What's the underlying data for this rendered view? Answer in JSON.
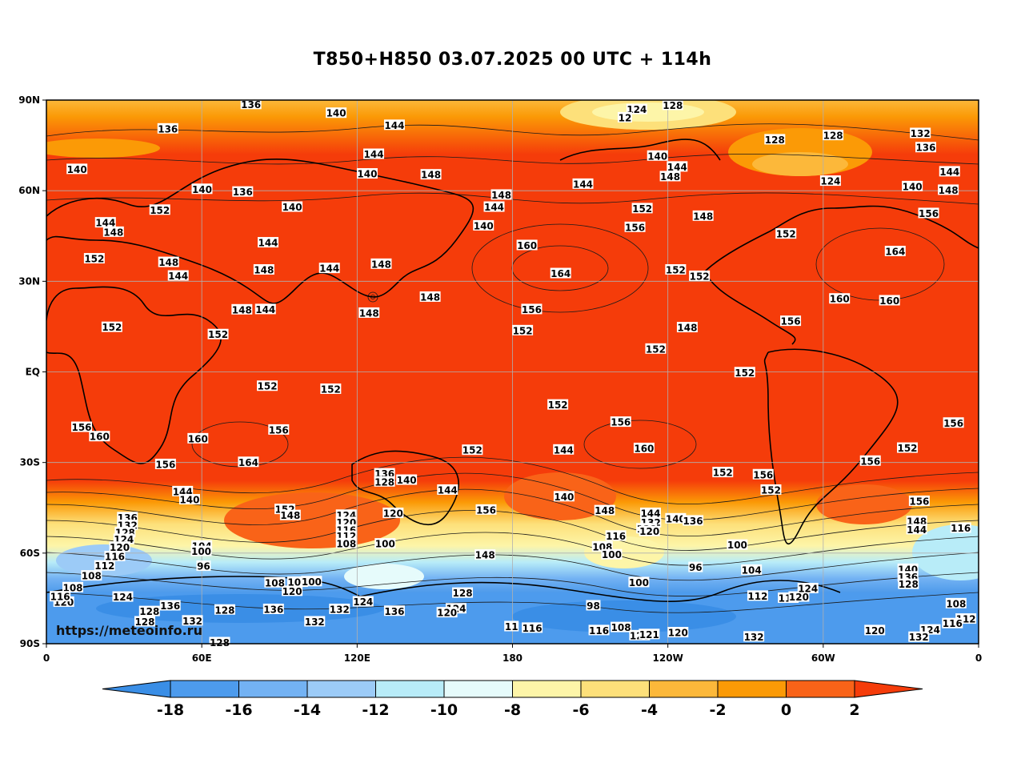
{
  "title": "T850+H850 03.07.2025 00 UTC + 114h",
  "watermark": "https://meteoinfo.ru",
  "lat_labels": [
    "90N",
    "60N",
    "30N",
    "EQ",
    "30S",
    "60S",
    "90S"
  ],
  "lon_labels": [
    "0",
    "60E",
    "120E",
    "180",
    "120W",
    "60W",
    "0"
  ],
  "colorbar": {
    "ticks": [
      "-18",
      "-16",
      "-14",
      "-12",
      "-10",
      "-8",
      "-6",
      "-4",
      "-2",
      "0",
      "2"
    ],
    "colors": [
      "#3a8ee6",
      "#4d9bed",
      "#73b2f3",
      "#9ccbf7",
      "#b8ecf8",
      "#e6fbfb",
      "#fdf5a8",
      "#fde07a",
      "#fcb83a",
      "#fb9a06",
      "#f96318",
      "#f53c0a"
    ]
  },
  "contour_labels": [
    {
      "t": "136",
      "lon": 79,
      "lat": 88.6
    },
    {
      "t": "140",
      "lon": 111.9,
      "lat": 85.7
    },
    {
      "t": "144",
      "lon": 134.4,
      "lat": 81.7
    },
    {
      "t": "124",
      "lon": 228,
      "lat": 86.9
    },
    {
      "t": "128",
      "lon": 241.9,
      "lat": 88.3
    },
    {
      "t": "12",
      "lon": 223.4,
      "lat": 84.2
    },
    {
      "t": "136",
      "lon": 46.9,
      "lat": 80.5
    },
    {
      "t": "140",
      "lon": 11.8,
      "lat": 67.1
    },
    {
      "t": "144",
      "lon": 126.4,
      "lat": 72.1
    },
    {
      "t": "140",
      "lon": 123.9,
      "lat": 65.6
    },
    {
      "t": "148",
      "lon": 148.5,
      "lat": 65.3
    },
    {
      "t": "140",
      "lon": 60.1,
      "lat": 60.5
    },
    {
      "t": "136",
      "lon": 75.8,
      "lat": 59.6
    },
    {
      "t": "152",
      "lon": 43.8,
      "lat": 53.6
    },
    {
      "t": "140",
      "lon": 94.9,
      "lat": 54.6
    },
    {
      "t": "144",
      "lon": 22.8,
      "lat": 49.4
    },
    {
      "t": "148",
      "lon": 25.9,
      "lat": 46.3
    },
    {
      "t": "144",
      "lon": 85.6,
      "lat": 42.8
    },
    {
      "t": "152",
      "lon": 18.5,
      "lat": 37.5
    },
    {
      "t": "148",
      "lon": 47.2,
      "lat": 36.3
    },
    {
      "t": "144",
      "lon": 50.9,
      "lat": 31.8
    },
    {
      "t": "148",
      "lon": 84,
      "lat": 33.8
    },
    {
      "t": "144",
      "lon": 109.3,
      "lat": 34.3
    },
    {
      "t": "148",
      "lon": 129.3,
      "lat": 35.7
    },
    {
      "t": "148",
      "lon": 240.9,
      "lat": 64.7
    },
    {
      "t": "144",
      "lon": 243.6,
      "lat": 67.9
    },
    {
      "t": "140",
      "lon": 236,
      "lat": 71.5
    },
    {
      "t": "128",
      "lon": 281.3,
      "lat": 76.9
    },
    {
      "t": "128",
      "lon": 303.8,
      "lat": 78.3
    },
    {
      "t": "132",
      "lon": 337.5,
      "lat": 79
    },
    {
      "t": "136",
      "lon": 339.6,
      "lat": 74.3
    },
    {
      "t": "144",
      "lon": 348.8,
      "lat": 66.3
    },
    {
      "t": "124",
      "lon": 302.8,
      "lat": 63.2
    },
    {
      "t": "140",
      "lon": 334.4,
      "lat": 61.4
    },
    {
      "t": "148",
      "lon": 348.3,
      "lat": 60.2
    },
    {
      "t": "156",
      "lon": 340.7,
      "lat": 52.5
    },
    {
      "t": "148",
      "lon": 253.6,
      "lat": 51.6
    },
    {
      "t": "152",
      "lon": 230.1,
      "lat": 54.1
    },
    {
      "t": "156",
      "lon": 227.3,
      "lat": 47.9
    },
    {
      "t": "152",
      "lon": 285.6,
      "lat": 45.7
    },
    {
      "t": "164",
      "lon": 327.8,
      "lat": 39.9
    },
    {
      "t": "144",
      "lon": 207.2,
      "lat": 62.2
    },
    {
      "t": "148",
      "lon": 175.7,
      "lat": 58.6
    },
    {
      "t": "144",
      "lon": 172.9,
      "lat": 54.6
    },
    {
      "t": "140",
      "lon": 168.8,
      "lat": 48.4
    },
    {
      "t": "160",
      "lon": 185.6,
      "lat": 41.9
    },
    {
      "t": "164",
      "lon": 198.6,
      "lat": 32.6
    },
    {
      "t": "152",
      "lon": 243,
      "lat": 33.8
    },
    {
      "t": "152",
      "lon": 252.2,
      "lat": 31.7
    },
    {
      "t": "160",
      "lon": 306.3,
      "lat": 24.2
    },
    {
      "t": "160",
      "lon": 325.6,
      "lat": 23.6
    },
    {
      "t": "156",
      "lon": 287.4,
      "lat": 16.8
    },
    {
      "t": "148",
      "lon": 124.6,
      "lat": 19.5
    },
    {
      "t": "148",
      "lon": 148.2,
      "lat": 24.8
    },
    {
      "t": "144",
      "lon": 84.6,
      "lat": 20.7
    },
    {
      "t": "148",
      "lon": 75.5,
      "lat": 20.6
    },
    {
      "t": "156",
      "lon": 187.4,
      "lat": 20.7
    },
    {
      "t": "148",
      "lon": 247.5,
      "lat": 14.7
    },
    {
      "t": "152",
      "lon": 25.3,
      "lat": 14.8
    },
    {
      "t": "152",
      "lon": 66.3,
      "lat": 12.4
    },
    {
      "t": "152",
      "lon": 183.9,
      "lat": 13.7
    },
    {
      "t": "152",
      "lon": 235.3,
      "lat": 7.6
    },
    {
      "t": "152",
      "lon": 269.7,
      "lat": -0.2
    },
    {
      "t": "152",
      "lon": 85.3,
      "lat": -4.7
    },
    {
      "t": "152",
      "lon": 109.8,
      "lat": -5.7
    },
    {
      "t": "152",
      "lon": 197.5,
      "lat": -10.9
    },
    {
      "t": "156",
      "lon": 13.6,
      "lat": -18.3
    },
    {
      "t": "160",
      "lon": 20.5,
      "lat": -21.4
    },
    {
      "t": "160",
      "lon": 58.5,
      "lat": -22.1
    },
    {
      "t": "156",
      "lon": 89.7,
      "lat": -19.2
    },
    {
      "t": "156",
      "lon": 221.8,
      "lat": -16.6
    },
    {
      "t": "156",
      "lon": 350.3,
      "lat": -16.9
    },
    {
      "t": "152",
      "lon": 164.5,
      "lat": -25.9
    },
    {
      "t": "144",
      "lon": 199.7,
      "lat": -25.8
    },
    {
      "t": "160",
      "lon": 230.8,
      "lat": -25.3
    },
    {
      "t": "152",
      "lon": 332.5,
      "lat": -25.2
    },
    {
      "t": "164",
      "lon": 78,
      "lat": -29.9
    },
    {
      "t": "156",
      "lon": 46,
      "lat": -30.6
    },
    {
      "t": "156",
      "lon": 318.2,
      "lat": -29.5
    },
    {
      "t": "152",
      "lon": 261.2,
      "lat": -33.3
    },
    {
      "t": "156",
      "lon": 276.8,
      "lat": -34
    },
    {
      "t": "152",
      "lon": 279.8,
      "lat": -39.1
    },
    {
      "t": "136",
      "lon": 130.6,
      "lat": -33.7
    },
    {
      "t": "128",
      "lon": 130.6,
      "lat": -36.4
    },
    {
      "t": "140",
      "lon": 139.1,
      "lat": -35.8
    },
    {
      "t": "144",
      "lon": 154.9,
      "lat": -39.1
    },
    {
      "t": "144",
      "lon": 52.6,
      "lat": -39.6
    },
    {
      "t": "140",
      "lon": 55.3,
      "lat": -42.3
    },
    {
      "t": "152",
      "lon": 92.1,
      "lat": -45.5
    },
    {
      "t": "148",
      "lon": 94.2,
      "lat": -47.5
    },
    {
      "t": "136",
      "lon": 31.3,
      "lat": -48.2
    },
    {
      "t": "132",
      "lon": 31.3,
      "lat": -50.8
    },
    {
      "t": "128",
      "lon": 30.4,
      "lat": -53.2
    },
    {
      "t": "124",
      "lon": 29.9,
      "lat": -55.4
    },
    {
      "t": "120",
      "lon": 28.3,
      "lat": -58
    },
    {
      "t": "116",
      "lon": 26.4,
      "lat": -61.1
    },
    {
      "t": "112",
      "lon": 22.5,
      "lat": -64.2
    },
    {
      "t": "108",
      "lon": 17.4,
      "lat": -67.5
    },
    {
      "t": "108",
      "lon": 10.2,
      "lat": -71.4
    },
    {
      "t": "124",
      "lon": 115.8,
      "lat": -47.4
    },
    {
      "t": "120",
      "lon": 115.8,
      "lat": -49.8
    },
    {
      "t": "116",
      "lon": 115.8,
      "lat": -52.3
    },
    {
      "t": "112",
      "lon": 115.8,
      "lat": -54.4
    },
    {
      "t": "108",
      "lon": 115.8,
      "lat": -56.8
    },
    {
      "t": "120",
      "lon": 133.9,
      "lat": -46.8
    },
    {
      "t": "100",
      "lon": 130.8,
      "lat": -56.9
    },
    {
      "t": "104",
      "lon": 60,
      "lat": -57.6
    },
    {
      "t": "100",
      "lon": 59.8,
      "lat": -59.4
    },
    {
      "t": "96",
      "lon": 60.7,
      "lat": -64.3
    },
    {
      "t": "156",
      "lon": 169.8,
      "lat": -45.7
    },
    {
      "t": "148",
      "lon": 169.4,
      "lat": -60.6
    },
    {
      "t": "148",
      "lon": 215.6,
      "lat": -45.9
    },
    {
      "t": "144",
      "lon": 233.3,
      "lat": -46.8
    },
    {
      "t": "140",
      "lon": 243,
      "lat": -48.6
    },
    {
      "t": "136",
      "lon": 249.7,
      "lat": -49.3
    },
    {
      "t": "132",
      "lon": 233.4,
      "lat": -49.9
    },
    {
      "t": "128",
      "lon": 231.8,
      "lat": -51.9
    },
    {
      "t": "120",
      "lon": 232.9,
      "lat": -52.8
    },
    {
      "t": "116",
      "lon": 219.9,
      "lat": -54.3
    },
    {
      "t": "108",
      "lon": 214.7,
      "lat": -57.9
    },
    {
      "t": "100",
      "lon": 218.3,
      "lat": -60.5
    },
    {
      "t": "140",
      "lon": 199.9,
      "lat": -41.3
    },
    {
      "t": "100",
      "lon": 266.8,
      "lat": -57.3
    },
    {
      "t": "96",
      "lon": 250.7,
      "lat": -64.7
    },
    {
      "t": "104",
      "lon": 272.3,
      "lat": -65.6
    },
    {
      "t": "100",
      "lon": 228.8,
      "lat": -69.7
    },
    {
      "t": "112",
      "lon": 274.7,
      "lat": -74.2
    },
    {
      "t": "116",
      "lon": 286.5,
      "lat": -74.9
    },
    {
      "t": "120",
      "lon": 290.6,
      "lat": -74.5
    },
    {
      "t": "124",
      "lon": 294.1,
      "lat": -71.7
    },
    {
      "t": "156",
      "lon": 337.1,
      "lat": -42.8
    },
    {
      "t": "148",
      "lon": 336.1,
      "lat": -49.5
    },
    {
      "t": "144",
      "lon": 336.1,
      "lat": -52.2
    },
    {
      "t": "140",
      "lon": 332.7,
      "lat": -65.3
    },
    {
      "t": "136",
      "lon": 332.7,
      "lat": -67.8
    },
    {
      "t": "128",
      "lon": 332.9,
      "lat": -70.3
    },
    {
      "t": "116",
      "lon": 353.1,
      "lat": -51.7
    },
    {
      "t": "108",
      "lon": 351.3,
      "lat": -76.7
    },
    {
      "t": "112",
      "lon": 355.1,
      "lat": -81.8
    },
    {
      "t": "116",
      "lon": 349.9,
      "lat": -83.3
    },
    {
      "t": "124",
      "lon": 341.3,
      "lat": -85.4
    },
    {
      "t": "132",
      "lon": 336.9,
      "lat": -87.8
    },
    {
      "t": "120",
      "lon": 319.9,
      "lat": -85.6
    },
    {
      "t": "120",
      "lon": 243.9,
      "lat": -86.3
    },
    {
      "t": "132",
      "lon": 273.2,
      "lat": -87.7
    },
    {
      "t": "128",
      "lon": 229.1,
      "lat": -87.3
    },
    {
      "t": "116",
      "lon": 213.4,
      "lat": -85.6
    },
    {
      "t": "108",
      "lon": 221.9,
      "lat": -84.6
    },
    {
      "t": "98",
      "lon": 211.2,
      "lat": -77.4
    },
    {
      "t": "116",
      "lon": 187.6,
      "lat": -84.8
    },
    {
      "t": "11",
      "lon": 179.6,
      "lat": -84.3
    },
    {
      "t": "124",
      "lon": 158.2,
      "lat": -78.4
    },
    {
      "t": "120",
      "lon": 154.7,
      "lat": -79.7
    },
    {
      "t": "128",
      "lon": 160.7,
      "lat": -73.2
    },
    {
      "t": "136",
      "lon": 134.4,
      "lat": -79.2
    },
    {
      "t": "124",
      "lon": 122.3,
      "lat": -76.1
    },
    {
      "t": "132",
      "lon": 113.2,
      "lat": -78.6
    },
    {
      "t": "132",
      "lon": 103.6,
      "lat": -82.7
    },
    {
      "t": "136",
      "lon": 87.7,
      "lat": -78.6
    },
    {
      "t": "128",
      "lon": 68.9,
      "lat": -78.8
    },
    {
      "t": "132",
      "lon": 56.4,
      "lat": -82.4
    },
    {
      "t": "128",
      "lon": 38,
      "lat": -82.7
    },
    {
      "t": "128",
      "lon": 39.8,
      "lat": -79.3
    },
    {
      "t": "136",
      "lon": 47.8,
      "lat": -77.4
    },
    {
      "t": "124",
      "lon": 29.5,
      "lat": -74.5
    },
    {
      "t": "120",
      "lon": 6.7,
      "lat": -76.2
    },
    {
      "t": "116",
      "lon": 5.3,
      "lat": -74.4
    },
    {
      "t": "120",
      "lon": 94.9,
      "lat": -72.6
    },
    {
      "t": "104",
      "lon": 97,
      "lat": -69.6
    },
    {
      "t": "100",
      "lon": 102.4,
      "lat": -69.4
    },
    {
      "t": "108",
      "lon": 88.2,
      "lat": -69.8
    },
    {
      "t": "128",
      "lon": 66.9,
      "lat": -89.6
    },
    {
      "t": "121",
      "lon": 232.8,
      "lat": -86.9
    }
  ]
}
